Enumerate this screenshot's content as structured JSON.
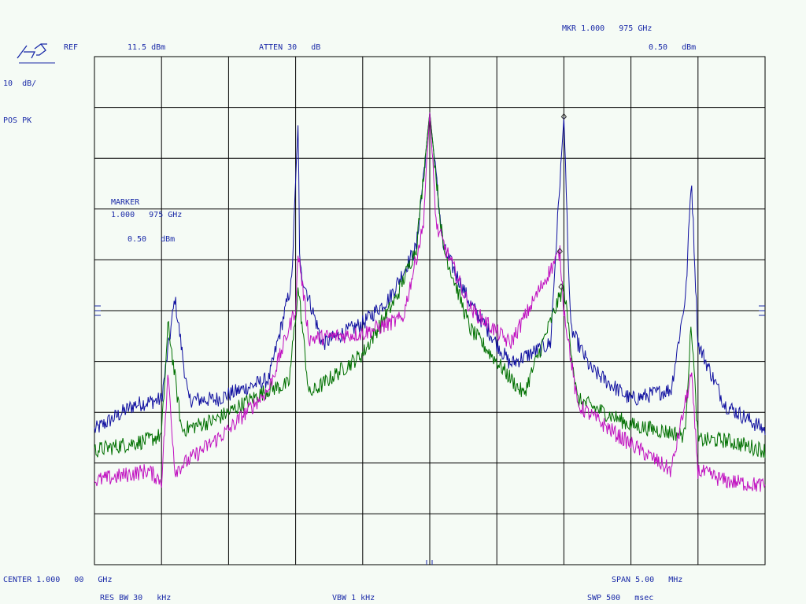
{
  "header": {
    "ref_label": "REF",
    "ref_value": "11.5 dBm",
    "atten": "ATTEN 30   dB",
    "marker_readout": "MKR 1.000   975 GHz",
    "marker_level": "0.50   dBm"
  },
  "side": {
    "scale": "10  dB/",
    "detector": "POS PK"
  },
  "marker_box": {
    "title": "MARKER",
    "freq": "1.000   975 GHz",
    "level": "0.50   dBm"
  },
  "footer": {
    "center": "CENTER 1.000   00   GHz",
    "span": "SPAN 5.00   MHz",
    "rbw": "RES BW 30   kHz",
    "vbw": "VBW 1 kHz",
    "sweep": "SWP 500   msec"
  },
  "colors": {
    "annotation": "#1a2aa8",
    "grid": "#000000",
    "background": "#f5fbf5"
  },
  "chart_data": {
    "type": "line",
    "title": "",
    "xlabel": "",
    "ylabel": "",
    "x_unit": "MHz offset from 1.00000 GHz",
    "xlim": [
      -2.5,
      2.5
    ],
    "ylim": [
      -88.5,
      11.5
    ],
    "grid": true,
    "x_divisions": 10,
    "y_divisions": 10,
    "series": [
      {
        "color": "#1010a0",
        "x": [
          -2.5,
          -2.2,
          -2.0,
          -1.9,
          -1.8,
          -1.6,
          -1.2,
          -1.03,
          -0.98,
          -0.97,
          -0.8,
          -0.5,
          -0.3,
          -0.1,
          0.0,
          0.1,
          0.3,
          0.6,
          0.9,
          0.97,
          1.0,
          1.05,
          1.2,
          1.5,
          1.8,
          1.91,
          1.95,
          2.0,
          2.2,
          2.5
        ],
        "y": [
          -62,
          -57,
          -56,
          -36,
          -56,
          -56,
          -52,
          -33,
          -0.5,
          -30,
          -45,
          -41,
          -36,
          -26,
          0.5,
          -26,
          -37,
          -49,
          -45,
          -13,
          -0.5,
          -42,
          -50,
          -56,
          -54,
          -35,
          -12,
          -45,
          -57,
          -62
        ]
      },
      {
        "color": "#007000",
        "x": [
          -2.5,
          -2.1,
          -2.0,
          -1.95,
          -1.85,
          -1.6,
          -1.2,
          -1.05,
          -0.98,
          -0.9,
          -0.5,
          -0.25,
          -0.1,
          0.0,
          0.1,
          0.3,
          0.7,
          0.98,
          1.0,
          1.1,
          1.5,
          1.9,
          1.95,
          2.0,
          2.2,
          2.5
        ],
        "y": [
          -66,
          -64,
          -63,
          -41,
          -62,
          -60,
          -54,
          -53,
          -34,
          -55,
          -47,
          -36,
          -26,
          0.5,
          -26,
          -42,
          -55,
          -35,
          -34,
          -56,
          -61,
          -63,
          -41,
          -64,
          -64,
          -66
        ]
      },
      {
        "color": "#c010c0",
        "x": [
          -2.5,
          -2.1,
          -2.0,
          -1.95,
          -1.9,
          -1.5,
          -1.2,
          -1.0,
          -0.98,
          -0.9,
          -0.5,
          -0.2,
          -0.05,
          0.0,
          0.05,
          0.3,
          0.6,
          0.97,
          1.0,
          1.1,
          1.4,
          1.8,
          1.95,
          2.0,
          2.2,
          2.5
        ],
        "y": [
          -72,
          -70,
          -72,
          -51,
          -70,
          -62,
          -54,
          -38,
          -27,
          -44,
          -43,
          -40,
          -22,
          0.5,
          -22,
          -38,
          -45,
          -27,
          -38,
          -57,
          -63,
          -70,
          -51,
          -70,
          -72,
          -73
        ]
      }
    ],
    "peak_markers": [
      {
        "x": 1.0,
        "y": -0.5
      },
      {
        "x": 0.97,
        "y": -27
      },
      {
        "x": 0.98,
        "y": -34
      }
    ]
  }
}
